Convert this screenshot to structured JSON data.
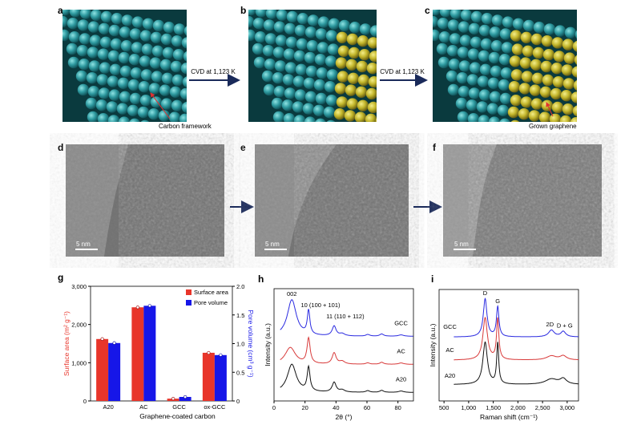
{
  "panels": {
    "a": "a",
    "b": "b",
    "c": "c",
    "d": "d",
    "e": "e",
    "f": "f",
    "g": "g",
    "h": "h",
    "i": "i"
  },
  "top_row": {
    "arrow1_label": "CVD at 1,123 K",
    "arrow2_label": "CVD at 1,123 K",
    "annotation_a": "Carbon framework",
    "annotation_c": "Grown graphene"
  },
  "tem": {
    "scale_d": "5 nm",
    "scale_e": "5 nm",
    "scale_f": "5 nm"
  },
  "colors": {
    "carbon": "#2e9aa0",
    "graphene": "#c2b52a",
    "surface": "#e8352a",
    "pore": "#1616e8",
    "gcc_line": "#2a2ae0",
    "ac_line": "#d83a3a",
    "a20_line": "#111111",
    "arrow": "#1a2a5a"
  },
  "chart_data": [
    {
      "type": "bar",
      "id": "g",
      "xlabel": "Graphene-coated carbon",
      "ylabel": "Surface area (m² g⁻¹)",
      "y2label": "Pore volume (cm³ g⁻¹)",
      "categories": [
        "A20",
        "AC",
        "GCC",
        "ox-GCC"
      ],
      "series": [
        {
          "name": "Surface area",
          "axis": "left",
          "values": [
            1620,
            2450,
            60,
            1260
          ]
        },
        {
          "name": "Pore volume",
          "axis": "right",
          "values": [
            1.01,
            1.66,
            0.07,
            0.8
          ]
        }
      ],
      "ylim": [
        0,
        3000
      ],
      "y2lim": [
        0,
        2
      ],
      "yticks": [
        "0",
        "1,000",
        "2,000",
        "3,000"
      ],
      "y2ticks": [
        "0",
        "0.5",
        "1.0",
        "1.5",
        "2.0"
      ],
      "legend": "top-right"
    },
    {
      "type": "line",
      "id": "h",
      "xlabel": "2θ (°)",
      "ylabel": "Intensity (a.u.)",
      "xlim": [
        0,
        90
      ],
      "xticks": [
        "0",
        "20",
        "40",
        "60",
        "80"
      ],
      "annotations": [
        "002",
        "10 (100 + 101)",
        "11 (110 + 112)"
      ],
      "series": [
        {
          "name": "GCC",
          "offset": 2.3,
          "peaks": [
            [
              11.5,
              1.3,
              3.5
            ],
            [
              22.3,
              0.85,
              1.0
            ],
            [
              38.8,
              0.35,
              1.5
            ],
            [
              44,
              0.08,
              2
            ],
            [
              60.5,
              0.06,
              1.5
            ],
            [
              69.5,
              0.08,
              1.5
            ],
            [
              82,
              0.05,
              2
            ]
          ]
        },
        {
          "name": "AC",
          "offset": 1.3,
          "peaks": [
            [
              10.5,
              0.6,
              4
            ],
            [
              22.3,
              0.9,
              1.2
            ],
            [
              38.8,
              0.4,
              1.5
            ],
            [
              44,
              0.1,
              2
            ],
            [
              60.5,
              0.05,
              1.5
            ],
            [
              69.5,
              0.07,
              1.5
            ],
            [
              82,
              0.05,
              2
            ]
          ]
        },
        {
          "name": "A20",
          "offset": 0.3,
          "peaks": [
            [
              11.5,
              1.0,
              3.5
            ],
            [
              22.3,
              0.85,
              1.1
            ],
            [
              38.8,
              0.35,
              1.5
            ],
            [
              44,
              0.08,
              2
            ],
            [
              60.5,
              0.06,
              1.5
            ],
            [
              69.5,
              0.07,
              1.5
            ],
            [
              82,
              0.05,
              2
            ]
          ]
        }
      ]
    },
    {
      "type": "line",
      "id": "i",
      "xlabel": "Raman shift (cm⁻¹)",
      "ylabel": "Intensity (a.u.)",
      "xlim": [
        400,
        3230
      ],
      "xticks": [
        "500",
        "1,000",
        "1,500",
        "2,000",
        "2,500",
        "3,000"
      ],
      "annotations": [
        "D",
        "G",
        "2D",
        "D + G"
      ],
      "series": [
        {
          "name": "GCC",
          "offset": 2.35,
          "peaks": [
            [
              1335,
              1.4,
              45
            ],
            [
              1590,
              1.1,
              30
            ],
            [
              2680,
              0.25,
              70
            ],
            [
              2920,
              0.2,
              60
            ]
          ]
        },
        {
          "name": "AC",
          "offset": 1.5,
          "peaks": [
            [
              1335,
              1.55,
              55
            ],
            [
              1590,
              1.5,
              28
            ],
            [
              2680,
              0.15,
              120
            ],
            [
              2920,
              0.15,
              80
            ]
          ]
        },
        {
          "name": "A20",
          "offset": 0.6,
          "peaks": [
            [
              1335,
              1.55,
              55
            ],
            [
              1590,
              1.5,
              25
            ],
            [
              2680,
              0.2,
              150
            ],
            [
              2920,
              0.2,
              80
            ]
          ]
        }
      ]
    }
  ]
}
